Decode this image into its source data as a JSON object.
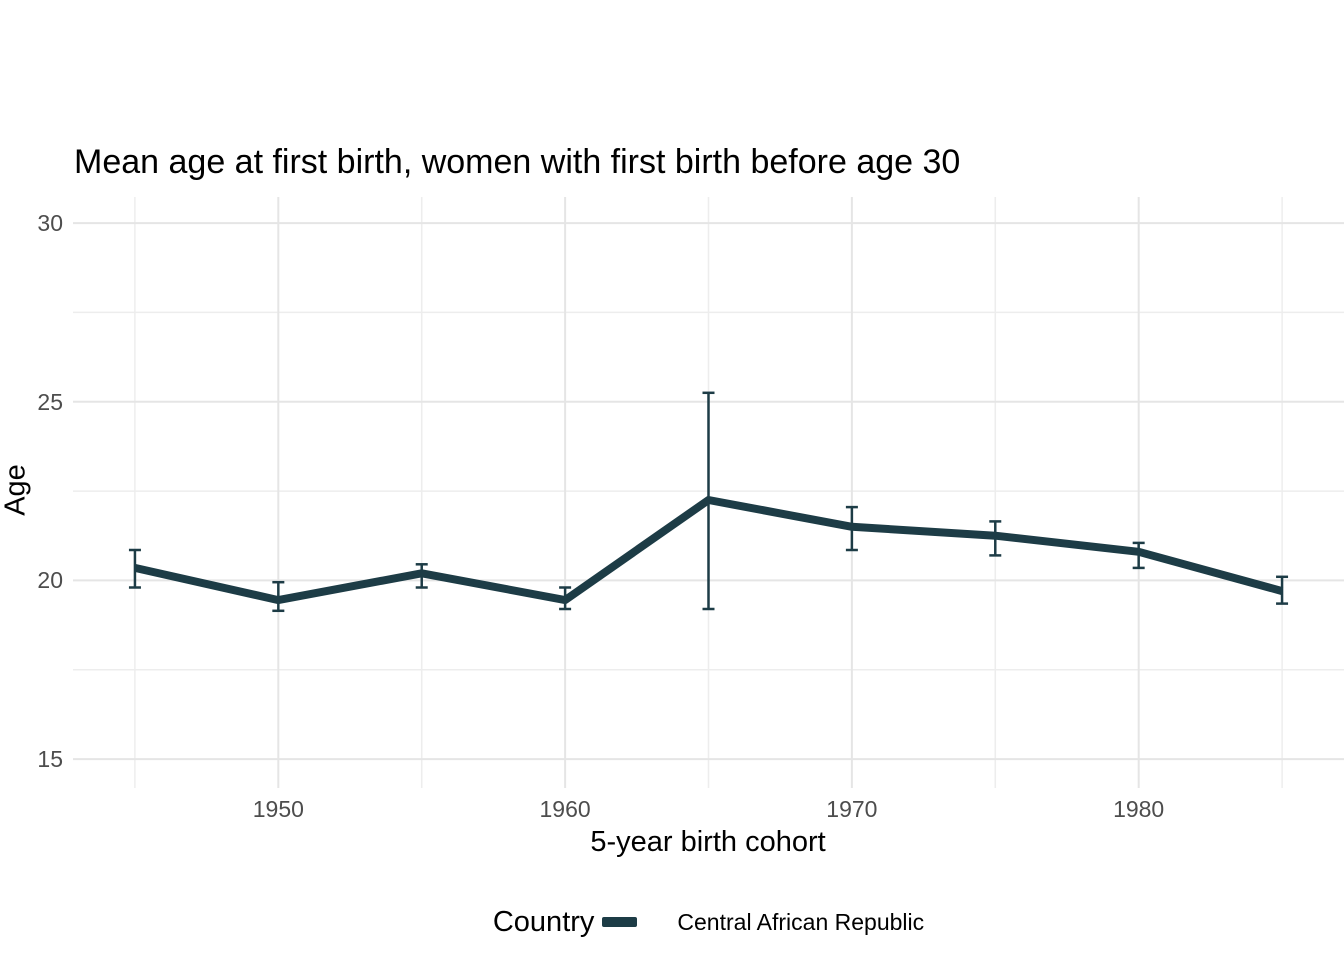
{
  "chart_data": {
    "type": "line",
    "title": "Mean age at first birth, women with first birth before age 30",
    "xlabel": "5-year birth cohort",
    "ylabel": "Age",
    "x": [
      1945,
      1950,
      1955,
      1960,
      1965,
      1970,
      1975,
      1980,
      1985
    ],
    "series": [
      {
        "name": "Central African Republic",
        "values": [
          20.35,
          19.45,
          20.2,
          19.45,
          22.25,
          21.5,
          21.25,
          20.8,
          19.7
        ],
        "ci_low": [
          19.8,
          19.15,
          19.8,
          19.2,
          19.2,
          20.85,
          20.7,
          20.35,
          19.35
        ],
        "ci_high": [
          20.85,
          19.95,
          20.45,
          19.8,
          25.25,
          22.05,
          21.65,
          21.05,
          20.1
        ],
        "color": "#1d3c46"
      }
    ],
    "xticks": {
      "values": [
        1950,
        1960,
        1970,
        1980
      ],
      "labels": [
        "1950",
        "1960",
        "1970",
        "1980"
      ]
    },
    "yticks": {
      "values": [
        15,
        20,
        25,
        30
      ],
      "labels": [
        "15",
        "20",
        "25",
        "30"
      ]
    },
    "x_minor": [
      1945,
      1955,
      1965,
      1975,
      1985
    ],
    "y_minor": [
      17.5,
      22.5,
      27.5
    ],
    "xlim": [
      1942.84,
      1987.16
    ],
    "ylim": [
      14.19,
      30.73
    ],
    "grid": true,
    "error_bars": true,
    "legend": {
      "position": "bottom",
      "title": "Country",
      "entries": [
        {
          "label": "Central African Republic",
          "color": "#1d3c46"
        }
      ]
    },
    "colors": {
      "line": "#1d3c46",
      "grid_major": "#e5e5e5",
      "grid_minor": "#ededed",
      "tick_text": "#4d4d4d",
      "title_text": "#000000",
      "background": "#ffffff"
    }
  }
}
